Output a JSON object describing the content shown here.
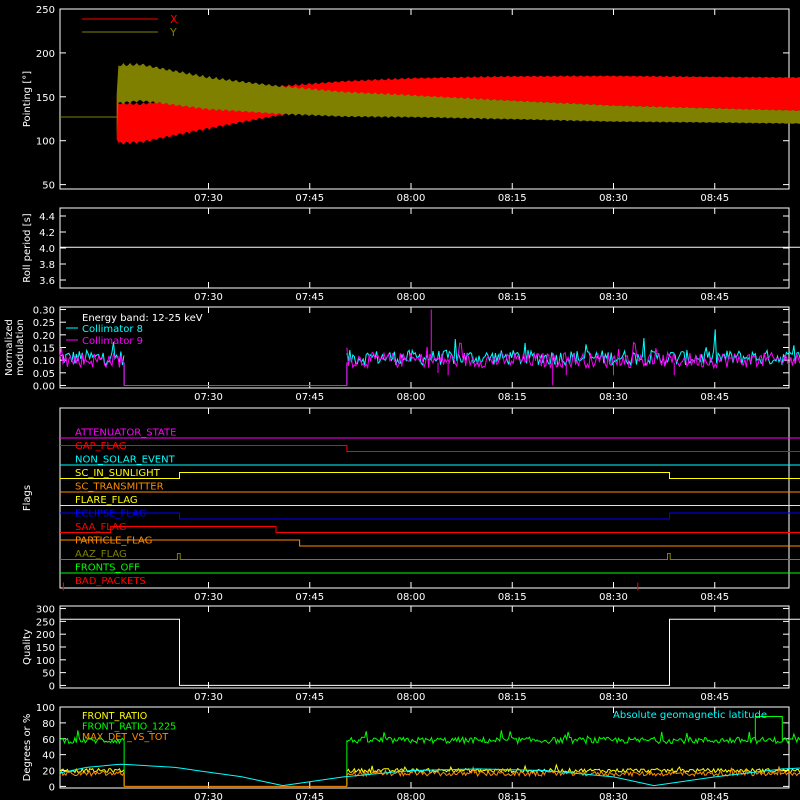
{
  "time_axis": {
    "ticks": [
      "07:30",
      "07:45",
      "08:00",
      "08:15",
      "08:30",
      "08:45"
    ],
    "tick_minutes": [
      450,
      465,
      480,
      495,
      510,
      525
    ],
    "range_minutes": [
      428,
      536
    ]
  },
  "colors": {
    "background": "#000000",
    "axes": "#ffffff",
    "x_red": "#ff0000",
    "y_olive": "#808000",
    "cyan": "#00ffff",
    "magenta": "#ff00ff",
    "green": "#00ff00",
    "orange": "#ff8c00",
    "yellow": "#ffff00",
    "blue": "#0000ff"
  },
  "chart_data": [
    {
      "id": "pointing",
      "type": "line",
      "ylabel": "Pointing [°]",
      "ylim": [
        45,
        250
      ],
      "yticks": [
        50,
        100,
        150,
        200,
        250
      ],
      "legend": [
        {
          "name": "X",
          "color": "#ff0000"
        },
        {
          "name": "Y",
          "color": "#808000"
        }
      ],
      "series": [
        {
          "name": "X",
          "color": "#ff0000",
          "points": [
            [
              428,
              127
            ],
            [
              436.4,
              127
            ],
            [
              436.4,
              120
            ],
            [
              440,
              120
            ],
            [
              450,
              133
            ],
            [
              460,
              145
            ],
            [
              470,
              153
            ],
            [
              480,
              158
            ],
            [
              495,
              162
            ],
            [
              510,
              164
            ],
            [
              525,
              164
            ],
            [
              538.5,
              164
            ],
            [
              538.5,
              127
            ],
            [
              544,
              127
            ]
          ],
          "envelope_min_minutes": 436.4,
          "envelope_max_minutes": 538.5
        },
        {
          "name": "Y",
          "color": "#808000",
          "points": [
            [
              428,
              127
            ],
            [
              436.4,
              127
            ],
            [
              436.4,
              162
            ],
            [
              440,
              164
            ],
            [
              450,
              152
            ],
            [
              460,
              145
            ],
            [
              470,
              140
            ],
            [
              480,
              138
            ],
            [
              495,
              134
            ],
            [
              510,
              130
            ],
            [
              525,
              128
            ],
            [
              538.5,
              126
            ],
            [
              538.5,
              127
            ],
            [
              544,
              127
            ]
          ]
        }
      ]
    },
    {
      "id": "roll-period",
      "type": "line",
      "ylabel": "Roll period [s]",
      "ylim": [
        3.5,
        4.5
      ],
      "yticks": [
        "3.6",
        "3.8",
        "4.0",
        "4.2",
        "4.4"
      ],
      "series": [
        {
          "name": "",
          "color": "#ffffff",
          "points": [
            [
              428,
              4.01
            ],
            [
              544,
              4.01
            ]
          ]
        }
      ]
    },
    {
      "id": "modulation",
      "type": "line",
      "ylabel": "Normalized modulation",
      "ylim": [
        -0.01,
        0.31
      ],
      "yticks": [
        "0.00",
        "0.05",
        "0.10",
        "0.15",
        "0.20",
        "0.25",
        "0.30"
      ],
      "legend_title": "Energy band: 12-25 keV",
      "series": [
        {
          "name": "Collimator 8",
          "color": "#00ffff",
          "noise": [
            0.11,
            0.06
          ],
          "segments": [
            [
              428,
              437.5
            ],
            [
              470.5,
              544
            ]
          ],
          "zero_between": [
            437.5,
            470.5
          ]
        },
        {
          "name": "Collimator 9",
          "color": "#ff00ff",
          "noise": [
            0.1,
            0.06
          ],
          "segments": [
            [
              428,
              437.5
            ],
            [
              470.5,
              544
            ]
          ],
          "zero_between": [
            437.5,
            470.5
          ]
        }
      ]
    },
    {
      "id": "flags",
      "type": "line",
      "ylabel": "Flags",
      "series": [
        {
          "name": "ATTENUATOR_STATE",
          "color": "#ff00ff",
          "steps": [
            [
              428,
              0
            ],
            [
              544,
              0
            ]
          ]
        },
        {
          "name": "GAP_FLAG",
          "color": "#ff0000",
          "steps": [
            [
              428,
              1
            ],
            [
              470.5,
              0
            ],
            [
              544,
              0
            ]
          ]
        },
        {
          "name": "NON_SOLAR_EVENT",
          "color": "#00ffff",
          "steps": [
            [
              428,
              0
            ],
            [
              544,
              0
            ]
          ]
        },
        {
          "name": "SC_IN_SUNLIGHT",
          "color": "#ffff00",
          "steps": [
            [
              428,
              0
            ],
            [
              445.7,
              1
            ],
            [
              518.3,
              0
            ],
            [
              544,
              0
            ]
          ]
        },
        {
          "name": "SC_TRANSMITTER",
          "color": "#ff8c00",
          "steps": [
            [
              428,
              0
            ],
            [
              544,
              0
            ]
          ]
        },
        {
          "name": "FLARE_FLAG",
          "color": "#ffff00",
          "steps": [
            [
              428,
              0
            ],
            [
              544,
              0
            ]
          ]
        },
        {
          "name": "ECLIPSE_FLAG",
          "color": "#0000ff",
          "steps": [
            [
              428,
              1
            ],
            [
              445.7,
              0
            ],
            [
              518.3,
              1
            ],
            [
              544,
              1
            ]
          ]
        },
        {
          "name": "SAA_FLAG",
          "color": "#ff0000",
          "steps": [
            [
              428,
              0
            ],
            [
              435.5,
              1
            ],
            [
              460,
              0
            ],
            [
              544,
              0
            ]
          ]
        },
        {
          "name": "PARTICLE_FLAG",
          "color": "#ff8c00",
          "steps": [
            [
              428,
              1
            ],
            [
              463.5,
              0
            ],
            [
              540,
              1
            ],
            [
              541.2,
              0
            ],
            [
              542.3,
              1
            ],
            [
              544,
              1
            ]
          ]
        },
        {
          "name": "AAZ_FLAG",
          "color": "#808000",
          "steps": [
            [
              428,
              0
            ],
            [
              445.4,
              1
            ],
            [
              445.8,
              0
            ],
            [
              518,
              1
            ],
            [
              518.4,
              0
            ],
            [
              544,
              0
            ]
          ]
        },
        {
          "name": "FRONTS_OFF",
          "color": "#00ff00",
          "steps": [
            [
              428,
              0
            ],
            [
              544,
              0
            ]
          ]
        },
        {
          "name": "BAD_PACKETS",
          "color": "#ff0000",
          "spikes": [
            428.5,
            513.6,
            541.4
          ]
        }
      ]
    },
    {
      "id": "quality",
      "type": "line",
      "ylabel": "Quality",
      "ylim": [
        -10,
        310
      ],
      "yticks": [
        0,
        50,
        100,
        150,
        200,
        250,
        300
      ],
      "series": [
        {
          "name": "",
          "color": "#ffffff",
          "points": [
            [
              428,
              258
            ],
            [
              445.7,
              258
            ],
            [
              445.7,
              0
            ],
            [
              518.3,
              0
            ],
            [
              518.3,
              258
            ],
            [
              544,
              258
            ]
          ]
        }
      ]
    },
    {
      "id": "front-ratio",
      "type": "line",
      "ylabel": "Degrees or %",
      "ylim": [
        -2,
        100
      ],
      "yticks": [
        0,
        20,
        40,
        60,
        80,
        100
      ],
      "series": [
        {
          "name": "FRONT_RATIO",
          "color": "#ffff00",
          "noise": [
            20,
            5
          ],
          "segments": [
            [
              428,
              437.5
            ],
            [
              470.5,
              544
            ]
          ]
        },
        {
          "name": "FRONT_RATIO_1225",
          "color": "#00ff00",
          "noise": [
            58,
            8
          ],
          "segments": [
            [
              428,
              437.5
            ],
            [
              470.5,
              544
            ]
          ]
        },
        {
          "name": "MAX_DET_VS_TOT",
          "color": "#ff8c00",
          "noise": [
            16,
            6
          ],
          "segments": [
            [
              428,
              437.5
            ],
            [
              470.5,
              544
            ]
          ]
        },
        {
          "name": "Absolute geomagnetic latitude",
          "color": "#00ffff",
          "points": [
            [
              428,
              17
            ],
            [
              432,
              24
            ],
            [
              437,
              28
            ],
            [
              445,
              24
            ],
            [
              455,
              12
            ],
            [
              461,
              1
            ],
            [
              470,
              12
            ],
            [
              480,
              20
            ],
            [
              490,
              22
            ],
            [
              500,
              20
            ],
            [
              510,
              12
            ],
            [
              516,
              1
            ],
            [
              525,
              12
            ],
            [
              535,
              22
            ],
            [
              540,
              24
            ],
            [
              544,
              26
            ]
          ]
        }
      ]
    }
  ]
}
